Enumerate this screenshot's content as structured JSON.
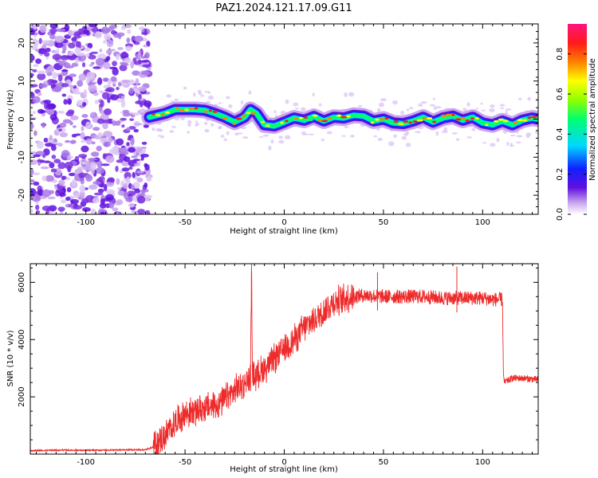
{
  "figure_title": "PAZ1.2024.121.17.09.G11",
  "chart_data": [
    {
      "type": "heatmap",
      "xlabel": "Height of straight line (km)",
      "ylabel": "Frequency (Hz)",
      "xlim": [
        -128,
        128
      ],
      "ylim": [
        -25,
        25
      ],
      "xticks": [
        -100,
        -50,
        0,
        50,
        100
      ],
      "yticks": [
        -20,
        -10,
        0,
        10,
        20
      ],
      "xtick_labels": [
        "-100",
        "-50",
        "0",
        "50",
        "100"
      ],
      "ytick_labels": [
        "-20",
        "-10",
        "0",
        "10",
        "20"
      ],
      "noise_region_x": [
        -128,
        -68
      ],
      "signal_start_x": -68,
      "ridge": {
        "x": [
          -68,
          -60,
          -55,
          -50,
          -45,
          -40,
          -35,
          -30,
          -25,
          -20,
          -17,
          -14,
          -10,
          -5,
          0,
          5,
          10,
          15,
          20,
          25,
          30,
          35,
          40,
          45,
          50,
          55,
          60,
          65,
          70,
          75,
          80,
          85,
          90,
          95,
          100,
          105,
          110,
          115,
          120,
          125,
          128
        ],
        "y": [
          0.5,
          1.5,
          2.5,
          2.5,
          2.5,
          2.3,
          1.5,
          0.5,
          -0.8,
          0.5,
          2.5,
          1.5,
          -1.5,
          -1.8,
          -0.8,
          0.3,
          -0.3,
          0.7,
          -0.5,
          0.5,
          0.3,
          1.0,
          0.8,
          -0.5,
          0.0,
          -1.0,
          -1.2,
          -0.5,
          0.5,
          -0.8,
          0.3,
          0.8,
          -0.3,
          0.5,
          -1.0,
          -1.5,
          -0.5,
          -1.5,
          -0.3,
          0.3,
          0.0
        ]
      },
      "colorbar": {
        "label": "Normalized spectral amplitude",
        "range": [
          0,
          0.95
        ],
        "ticks": [
          0.0,
          0.2,
          0.4,
          0.6,
          0.8
        ],
        "tick_labels": [
          "0.0",
          "0.2",
          "0.4",
          "0.6",
          "0.8"
        ],
        "colormap": [
          "#ffffff",
          "#c9a6ee",
          "#6010e0",
          "#1020ff",
          "#00d8ff",
          "#00ff70",
          "#90ff00",
          "#ffff00",
          "#ff8000",
          "#ff1a1a",
          "#ff1480"
        ]
      },
      "grid": false
    },
    {
      "type": "line",
      "xlabel": "Height of straight line (km)",
      "ylabel": "SNR (10 * v/v)",
      "xlim": [
        -128,
        128
      ],
      "ylim": [
        0,
        6650
      ],
      "xticks": [
        -100,
        -50,
        0,
        50,
        100
      ],
      "yticks": [
        2000,
        4000,
        6000
      ],
      "xtick_labels": [
        "-100",
        "-50",
        "0",
        "50",
        "100"
      ],
      "ytick_labels": [
        "2000",
        "4000",
        "6000"
      ],
      "series_color": "#ee2a2a",
      "x": [
        -128,
        -120,
        -110,
        -100,
        -90,
        -80,
        -70,
        -66,
        -62,
        -58,
        -54,
        -50,
        -45,
        -40,
        -35,
        -30,
        -25,
        -20,
        -17,
        -16.5,
        -16,
        -15,
        -12,
        -8,
        -4,
        0,
        5,
        10,
        15,
        20,
        25,
        30,
        35,
        40,
        50,
        60,
        70,
        80,
        90,
        100,
        105,
        110,
        110.5,
        111,
        115,
        120,
        128
      ],
      "y": [
        120,
        130,
        140,
        130,
        140,
        150,
        150,
        250,
        500,
        800,
        1200,
        1400,
        1500,
        1600,
        1700,
        1900,
        2200,
        2500,
        2700,
        6350,
        2800,
        2700,
        2900,
        3100,
        3400,
        3700,
        4000,
        4400,
        4700,
        5000,
        5300,
        5450,
        5500,
        5550,
        5500,
        5500,
        5500,
        5450,
        5450,
        5450,
        5400,
        5400,
        2700,
        2500,
        2650,
        2650,
        2600
      ],
      "spikes": [
        {
          "x": -16.5,
          "y": 6350
        },
        {
          "x": 87,
          "y": 6550
        },
        {
          "x": 47,
          "y": 6350
        }
      ],
      "grid": false
    }
  ]
}
